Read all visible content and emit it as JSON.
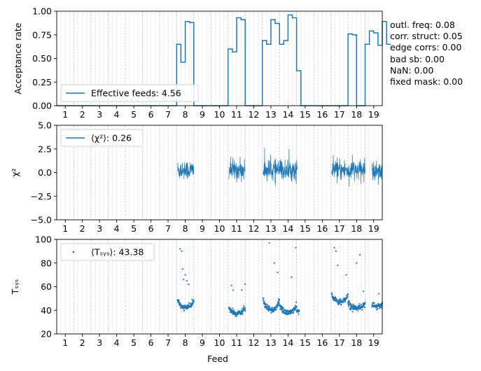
{
  "figure": {
    "side_stats": [
      "outl. freq: 0.08",
      "corr. struct: 0.05",
      "edge corrs: 0.00",
      "bad sb: 0.00",
      "NaN: 0.00",
      "fixed mask: 0.00"
    ],
    "xlabel": "Feed",
    "feed_labels": [
      "1",
      "2",
      "3",
      "4",
      "5",
      "6",
      "7",
      "8",
      "9",
      "10",
      "11",
      "12",
      "13",
      "14",
      "15",
      "16",
      "17",
      "18",
      "19"
    ],
    "line_color": "#1f77b4"
  },
  "chart_data": [
    {
      "type": "line",
      "name": "acceptance-rate",
      "ylabel": "Acceptance rate",
      "ylim": [
        0,
        1
      ],
      "yticks": [
        "0.00",
        "0.25",
        "0.50",
        "0.75",
        "1.00"
      ],
      "ytick_values": [
        0,
        0.25,
        0.5,
        0.75,
        1.0
      ],
      "legend": "Effective feeds: 4.56",
      "legend_loc": "lower-left",
      "step": true,
      "segment_feed_width": 0.25,
      "values": [
        0,
        0,
        0,
        0,
        0,
        0,
        0,
        0,
        0,
        0,
        0,
        0,
        0,
        0,
        0,
        0,
        0,
        0,
        0,
        0,
        0,
        0,
        0,
        0,
        0,
        0,
        0,
        0,
        0.65,
        0.46,
        0.89,
        0.88,
        0,
        0,
        0,
        0,
        0,
        0,
        0,
        0,
        0.6,
        0.57,
        0.93,
        0.91,
        0,
        0,
        0,
        0,
        0.69,
        0.65,
        0.91,
        0.87,
        0.65,
        0.69,
        0.96,
        0.93,
        0.37,
        0,
        0,
        0,
        0,
        0,
        0,
        0,
        0,
        0,
        0,
        0,
        0.76,
        0.75,
        0,
        0,
        0.65,
        0.79,
        0.77,
        0.64,
        0.89,
        0.65
      ]
    },
    {
      "type": "line",
      "name": "chi2",
      "ylabel": "χ²",
      "ylim": [
        -5,
        5
      ],
      "yticks": [
        "−5.0",
        "−2.5",
        "0.0",
        "2.5",
        "5.0"
      ],
      "ytick_values": [
        -5,
        -2.5,
        0,
        2.5,
        5
      ],
      "legend": "⟨χ²⟩: 0.26",
      "legend_loc": "upper-left",
      "active_ranges": [
        [
          7.55,
          8.5
        ],
        [
          10.55,
          11.5
        ],
        [
          12.55,
          14.55
        ],
        [
          16.55,
          18.5
        ],
        [
          18.9,
          19.5
        ]
      ],
      "spread": 1.0
    },
    {
      "type": "scatter",
      "name": "tsys",
      "ylabel": "Tₛᵧₛ",
      "ylim": [
        20,
        100
      ],
      "yticks": [
        "20",
        "40",
        "60",
        "80",
        "100"
      ],
      "ytick_values": [
        20,
        40,
        60,
        80,
        100
      ],
      "legend": "⟨Tₛᵧₛ⟩: 43.38",
      "legend_loc": "upper-left",
      "clusters": [
        {
          "range": [
            7.55,
            8.5
          ],
          "base": 42,
          "bump": 6
        },
        {
          "range": [
            10.55,
            11.5
          ],
          "base": 37,
          "bump": 5
        },
        {
          "range": [
            12.55,
            13.5
          ],
          "base": 40,
          "bump": 8
        },
        {
          "range": [
            13.5,
            14.5
          ],
          "base": 38,
          "bump": 6
        },
        {
          "range": [
            14.5,
            14.65
          ],
          "base": 39,
          "bump": 1
        },
        {
          "range": [
            16.55,
            17.5
          ],
          "base": 47,
          "bump": 6
        },
        {
          "range": [
            17.5,
            18.5
          ],
          "base": 42,
          "bump": 4
        },
        {
          "range": [
            18.9,
            19.5
          ],
          "base": 43,
          "bump": 2
        }
      ],
      "outliers": [
        [
          7.7,
          92
        ],
        [
          7.8,
          90
        ],
        [
          7.85,
          75
        ],
        [
          7.9,
          66
        ],
        [
          8.0,
          70
        ],
        [
          8.1,
          65
        ],
        [
          8.2,
          62
        ],
        [
          10.7,
          61
        ],
        [
          10.8,
          57
        ],
        [
          11.3,
          57
        ],
        [
          11.5,
          62
        ],
        [
          12.9,
          97
        ],
        [
          13.2,
          80
        ],
        [
          13.4,
          72
        ],
        [
          14.45,
          93
        ],
        [
          14.2,
          68
        ],
        [
          16.7,
          93
        ],
        [
          16.8,
          90
        ],
        [
          16.9,
          78
        ],
        [
          17.4,
          70
        ],
        [
          18.0,
          80
        ],
        [
          18.2,
          87
        ],
        [
          18.4,
          56
        ],
        [
          19.3,
          54
        ]
      ]
    }
  ]
}
